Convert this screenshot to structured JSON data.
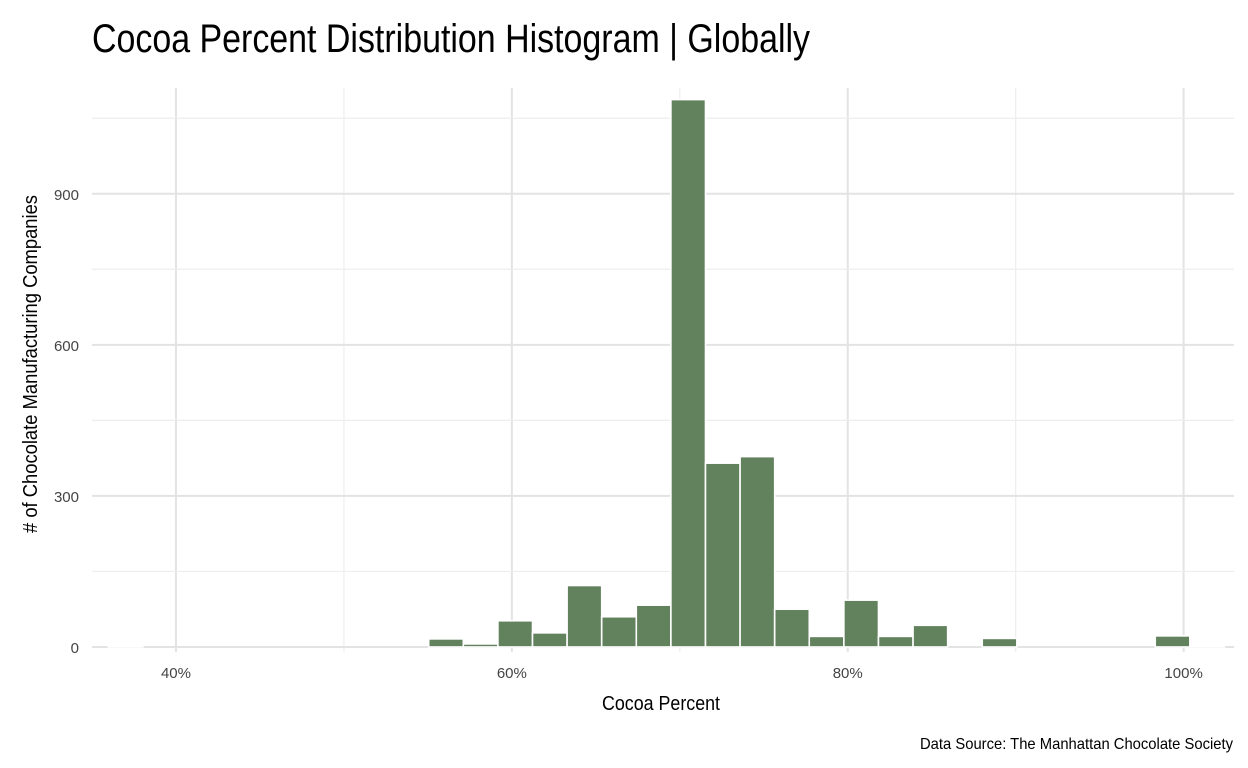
{
  "chart_data": {
    "type": "bar",
    "title": "Cocoa Percent Distribution Histogram | Globally",
    "xlabel": "Cocoa Percent",
    "ylabel": "# of Chocolate Manufacturing Companies",
    "caption": "Data Source: The Manhattan Chocolate Society",
    "bar_color": "#62815d",
    "grid": true,
    "xlim": [
      35,
      103
    ],
    "ylim": [
      -10,
      1110
    ],
    "x_ticks": [
      40,
      60,
      80,
      100
    ],
    "x_tick_labels": [
      "40%",
      "60%",
      "80%",
      "100%"
    ],
    "y_ticks": [
      0,
      300,
      600,
      900
    ],
    "y_tick_labels": [
      "0",
      "300",
      "600",
      "900"
    ],
    "bin_width": 2.06,
    "bins": [
      {
        "x": 37.0,
        "count": 1
      },
      {
        "x": 56.08,
        "count": 16
      },
      {
        "x": 58.14,
        "count": 6
      },
      {
        "x": 60.2,
        "count": 52
      },
      {
        "x": 62.26,
        "count": 28
      },
      {
        "x": 64.32,
        "count": 122
      },
      {
        "x": 66.38,
        "count": 60
      },
      {
        "x": 68.44,
        "count": 83
      },
      {
        "x": 70.5,
        "count": 1087
      },
      {
        "x": 72.56,
        "count": 365
      },
      {
        "x": 74.62,
        "count": 378
      },
      {
        "x": 76.68,
        "count": 75
      },
      {
        "x": 78.74,
        "count": 21
      },
      {
        "x": 80.8,
        "count": 93
      },
      {
        "x": 82.86,
        "count": 21
      },
      {
        "x": 84.92,
        "count": 43
      },
      {
        "x": 89.04,
        "count": 17
      },
      {
        "x": 99.34,
        "count": 22
      },
      {
        "x": 101.4,
        "count": 1
      }
    ]
  }
}
